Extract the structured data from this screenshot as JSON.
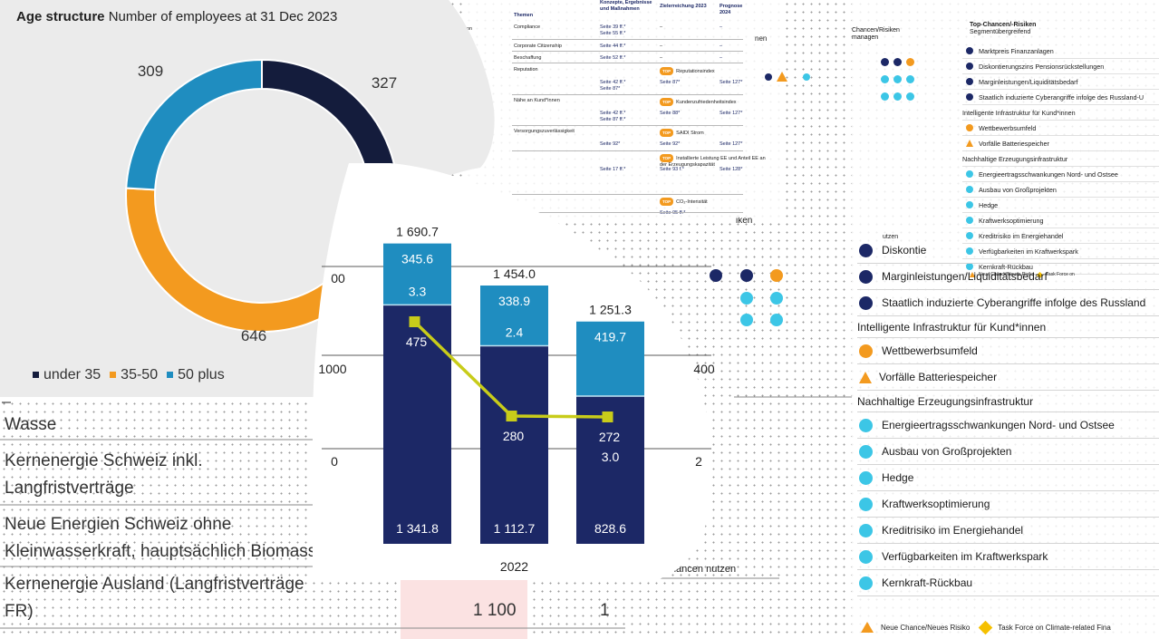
{
  "age_structure": {
    "title_bold": "Age structure",
    "title_rest": "Number of employees at 31 Dec 2023",
    "legend": [
      {
        "label": "under 35",
        "color": "#141c3c"
      },
      {
        "label": "35-50",
        "color": "#f39a1f"
      },
      {
        "label": "50 plus",
        "color": "#1f8dc0"
      }
    ]
  },
  "chart_data": [
    {
      "type": "pie",
      "title": "Age structure Number of employees at 31 Dec 2023",
      "categories": [
        "under 35",
        "35-50",
        "50 plus"
      ],
      "values": [
        327,
        646,
        309
      ],
      "colors": [
        "#141c3c",
        "#f39a1f",
        "#1f8dc0"
      ],
      "donut": true
    },
    {
      "type": "bar",
      "stacked": true,
      "totals": [
        "1 690.7",
        "1 454.0",
        "1 251.3"
      ],
      "series": [
        {
          "values": [
            1341.8,
            1112.7,
            828.6
          ],
          "labels": [
            "1 341.8",
            "1 112.7",
            "828.6"
          ],
          "color": "#1c2866"
        },
        {
          "values": [
            3.3,
            2.4,
            3.0
          ],
          "labels": [
            "3.3",
            "2.4",
            "3.0"
          ],
          "color": "#1f8dc0"
        },
        {
          "values": [
            345.6,
            338.9,
            419.7
          ],
          "labels": [
            "345.6",
            "338.9",
            "419.7"
          ],
          "color": "#1f8dc0"
        }
      ],
      "line_series": {
        "values": [
          475,
          280,
          272
        ],
        "labels": [
          "475",
          "280",
          "272"
        ],
        "color": "#c8cc1a"
      },
      "categories": [
        "",
        "2022",
        ""
      ],
      "left_axis_ticks": [
        "0",
        "1000"
      ],
      "right_axis_ticks": [
        "2",
        "400"
      ]
    }
  ],
  "energy_table": {
    "rows": [
      {
        "label": "Wasse",
        "value1": "",
        "value2": ""
      },
      {
        "label": "Kernenergie Schweiz inkl.\nLangfristverträge",
        "value1": "",
        "value2": ""
      },
      {
        "label": "Neue Energien Schweiz ohne\nKleinwasserkraft, hauptsächlich Biomasse",
        "value1": "",
        "value2": ""
      },
      {
        "label": "Kernenergie Ausland (Langfristverträge\nFR)",
        "value1": "1 100",
        "value2": "1"
      }
    ]
  },
  "mid_table": {
    "headers": [
      "Themen",
      "Konzepte, Ergebnisse und Maßnahmen",
      "Zielerreichung 2023",
      "Prognose 2024"
    ],
    "rows": [
      {
        "topic": "Compliance",
        "refs": "Seite 39 ff.*\nSeite 55 ff.*",
        "target": "–",
        "forecast": "–"
      },
      {
        "topic": "Corporate Citizenship",
        "refs": "Seite 44 ff.*",
        "target": "–",
        "forecast": "–"
      },
      {
        "topic": "Beschaffung",
        "refs": "Seite 52 ff.*",
        "target": "–",
        "forecast": "–"
      },
      {
        "topic": "Reputation",
        "refs": "Seite 42 ff.*\nSeite 87*",
        "target_badge": "TOP",
        "target": "Reputationsindex",
        "target_ref": "Seite 87*",
        "forecast": "Seite 127*"
      },
      {
        "topic": "Nähe an Kund*innen",
        "refs": "Seite 42 ff.*\nSeite 87 ff.*",
        "target_badge": "TOP",
        "target": "Kundenzufriedenheitsindex",
        "target_ref": "Seite 88*",
        "forecast": "Seite 127*"
      },
      {
        "topic": "Versorgungszuverlässigkeit",
        "refs": "Seite 92*",
        "target_badge": "TOP",
        "target": "SAIDI Strom",
        "target_ref": "Seite 92*",
        "forecast": "Seite 127*"
      },
      {
        "topic": "",
        "refs": "Seite 17 ff.*",
        "target_badge": "TOP",
        "target": "Installierte Leistung EE und Anteil EE an der Erzeugungskapazität",
        "target_ref": "Seite 93 f.*",
        "forecast": "Seite 128*"
      },
      {
        "topic": "",
        "refs": "",
        "target_badge": "TOP",
        "target": "CO₂-Intensität",
        "target_ref": "Seite 95 ff.*",
        "forecast": ""
      }
    ],
    "left_frag": "on",
    "right_frag": "nen"
  },
  "risk_table": {
    "header_left": "Chancen/Risiken\nmanagen",
    "header_title": "Top-Chancen/-Risiken",
    "header_sub": "Segmentübergreifend",
    "small_rows": [
      {
        "label": "Marktpreis Finanzanlagen",
        "marker": "dot",
        "color": "#1c2866"
      },
      {
        "label": "Diskontierungszins Pensionsrückstellungen",
        "marker": "dot",
        "color": "#1c2866"
      },
      {
        "label": "Marginleistungen/Liquiditätsbedarf",
        "marker": "dot",
        "color": "#1c2866"
      },
      {
        "label": "Staatlich induzierte Cyberangriffe infolge des Russland-U",
        "marker": "dot",
        "color": "#1c2866"
      },
      {
        "label": "Intelligente Infrastruktur für Kund*innen",
        "marker": "section"
      },
      {
        "label": "Wettbewerbsumfeld",
        "marker": "dot",
        "color": "#f39a1f"
      },
      {
        "label": "Vorfälle Batteriespeicher",
        "marker": "tri",
        "color": "#f39a1f"
      },
      {
        "label": "Nachhaltige Erzeugungsinfrastruktur",
        "marker": "section"
      },
      {
        "label": "Energieertragsschwankungen Nord- und Ostsee",
        "marker": "dot",
        "color": "#3cc6e6"
      },
      {
        "label": "Ausbau von Großprojekten",
        "marker": "dot",
        "color": "#3cc6e6"
      },
      {
        "label": "Hedge",
        "marker": "dot",
        "color": "#3cc6e6"
      },
      {
        "label": "Kraftwerksoptimierung",
        "marker": "dot",
        "color": "#3cc6e6"
      },
      {
        "label": "Kreditrisiko im Energiehandel",
        "marker": "dot",
        "color": "#3cc6e6"
      },
      {
        "label": "Verfügbarkeiten im Kraftwerkspark",
        "marker": "dot",
        "color": "#3cc6e6"
      },
      {
        "label": "Kernkraft-Rückbau",
        "marker": "dot",
        "color": "#3cc6e6"
      }
    ],
    "small_footer_a": "Neue Chance/Neues Risiko",
    "small_footer_b": "Task Force on",
    "frag_nutzen": "utzen",
    "large_rows": [
      {
        "label": "Diskontie",
        "marker": "dot",
        "color": "#1c2866"
      },
      {
        "label": "Marginleistungen/Liquiditätsbedarf",
        "marker": "dot",
        "color": "#1c2866"
      },
      {
        "label": "Staatlich induzierte Cyberangriffe infolge des Russland",
        "marker": "dot",
        "color": "#1c2866"
      },
      {
        "label": "Intelligente Infrastruktur für Kund*innen",
        "marker": "section"
      },
      {
        "label": "Wettbewerbsumfeld",
        "marker": "dot",
        "color": "#f39a1f"
      },
      {
        "label": "Vorfälle Batteriespeicher",
        "marker": "tri",
        "color": "#f39a1f"
      },
      {
        "label": "Nachhaltige Erzeugungsinfrastruktur",
        "marker": "section"
      },
      {
        "label": "Energieertragsschwankungen Nord- und Ostsee",
        "marker": "dot",
        "color": "#3cc6e6"
      },
      {
        "label": "Ausbau von Großprojekten",
        "marker": "dot",
        "color": "#3cc6e6"
      },
      {
        "label": "Hedge",
        "marker": "dot",
        "color": "#3cc6e6"
      },
      {
        "label": "Kraftwerksoptimierung",
        "marker": "dot",
        "color": "#3cc6e6"
      },
      {
        "label": "Kreditrisiko im Energiehandel",
        "marker": "dot",
        "color": "#3cc6e6"
      },
      {
        "label": "Verfügbarkeiten im Kraftwerkspark",
        "marker": "dot",
        "color": "#3cc6e6"
      },
      {
        "label": "Kernkraft-Rückbau",
        "marker": "dot",
        "color": "#3cc6e6"
      }
    ],
    "footer_a": "Neue Chance/Neues Risiko",
    "footer_b": "Task Force on Climate-related Fina",
    "frag_chancen_nutzen": "Chancen nutzen",
    "frag_ken": "iken"
  }
}
